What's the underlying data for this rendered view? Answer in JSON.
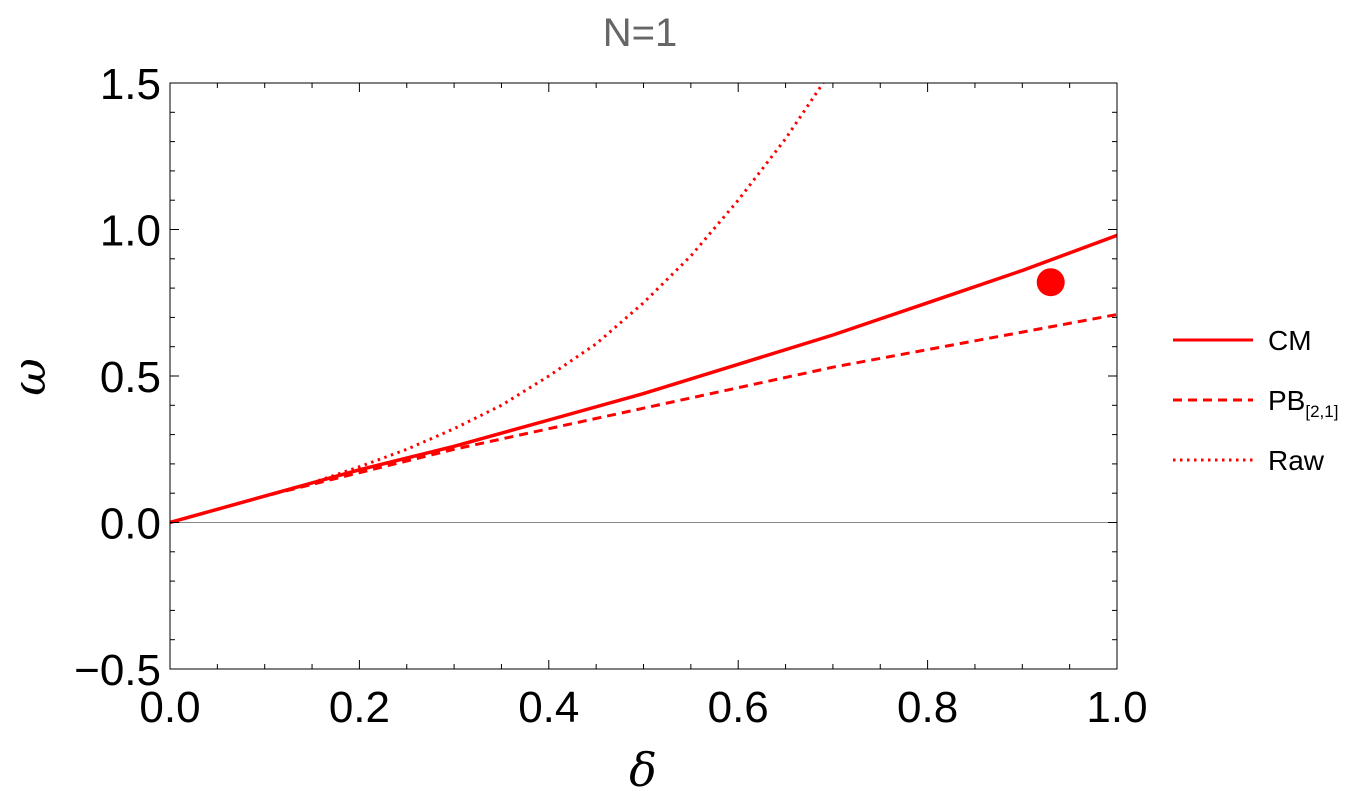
{
  "chart_data": {
    "type": "line",
    "title": "N=1",
    "xlabel": "δ",
    "ylabel": "ω",
    "xlim": [
      0.0,
      1.0
    ],
    "ylim": [
      -0.5,
      1.5
    ],
    "x_ticks": [
      "0.0",
      "0.2",
      "0.4",
      "0.6",
      "0.8",
      "1.0"
    ],
    "y_ticks": [
      "−0.5",
      "0.0",
      "0.5",
      "1.0",
      "1.5"
    ],
    "legend_position": "right",
    "colors": {
      "series": "#ff0000",
      "baseline": "#888888",
      "frame": "#000000"
    },
    "series": [
      {
        "name": "CM",
        "style": "solid",
        "x": [
          0.0,
          0.1,
          0.2,
          0.3,
          0.4,
          0.5,
          0.6,
          0.7,
          0.8,
          0.9,
          1.0
        ],
        "y": [
          0.0,
          0.09,
          0.18,
          0.26,
          0.35,
          0.44,
          0.54,
          0.64,
          0.75,
          0.86,
          0.98
        ]
      },
      {
        "name": "PB",
        "name_sub": "[2,1]",
        "style": "dashed",
        "x": [
          0.0,
          0.1,
          0.2,
          0.3,
          0.4,
          0.5,
          0.6,
          0.7,
          0.8,
          0.9,
          1.0
        ],
        "y": [
          0.0,
          0.09,
          0.17,
          0.25,
          0.32,
          0.39,
          0.46,
          0.53,
          0.59,
          0.65,
          0.71
        ]
      },
      {
        "name": "Raw",
        "style": "dotted",
        "x": [
          0.0,
          0.1,
          0.15,
          0.2,
          0.25,
          0.3,
          0.35,
          0.4,
          0.45,
          0.5,
          0.55,
          0.6,
          0.65,
          0.7
        ],
        "y": [
          0.0,
          0.09,
          0.135,
          0.19,
          0.25,
          0.32,
          0.4,
          0.5,
          0.61,
          0.75,
          0.91,
          1.1,
          1.31,
          1.55
        ]
      }
    ],
    "points": [
      {
        "x": 0.93,
        "y": 0.82
      }
    ]
  }
}
